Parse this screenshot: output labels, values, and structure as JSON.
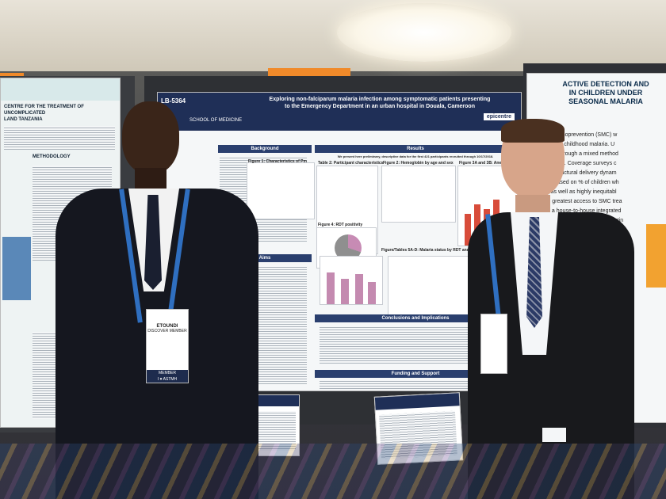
{
  "main_poster": {
    "id": "LB-5364",
    "title_line1": "Exploring non-falciparum malaria infection among symptomatic patients presenting",
    "title_line2": "to the Emergency Department in an urban hospital in Douala, Cameroon",
    "school": "SCHOOL OF MEDICINE",
    "logo_text": "epicentre",
    "sections": {
      "background": "Background",
      "results": "Results",
      "aims": "Aims",
      "conclusions": "Conclusions and Implications",
      "funding": "Funding and Support"
    },
    "results_intro": "We present here preliminary, descriptive data for the first 421 participants recruited through 10/17/2018.",
    "figure_labels": {
      "fig1": "Figure 1: Characteristics of Pm",
      "table2": "Table 2: Participant characteristics",
      "fig2": "Figure 2: Hemoglobin by age and sex",
      "fig3": "Figure 3A and 3B: Anemia",
      "fig4": "Figure 4: RDT positivity",
      "fig5": "Figure/Tables 5A-D: Malaria status by RDT and microscopy"
    }
  },
  "left_poster": {
    "title": "CENTRE FOR THE TREATMENT OF UNCOMPLICATED\nLAND TANZANIA",
    "methodology": "METHODOLOGY"
  },
  "right_poster": {
    "title": "ACTIVE DETECTION AND\nIN CHILDREN UNDER\nSEASONAL MALARIA",
    "body": "Malaria Chemoprevention (SMC) w\nool to reduce childhood malaria. U\nmodel was through a mixed method\ned in villages). Coverage surveys c\nhat these structural delivery dynam\noverage (based on % of children wh\ncycles), as well as highly inequitabl\nrved the greatest access to SMC trea\nhifted to a house-to-house integrated\ny model; pairing SMC with early testin\ncommunity health workers (CHWs)."
  },
  "left_badge": {
    "name": "ETOUNDI",
    "org": "DISCOVER MEMBER",
    "footer": "MEMBER\nI ♥ ASTMH"
  },
  "colors": {
    "poster_header": "#1f2f57",
    "section_bar": "#2a3f6e",
    "lanyard": "#2f6fc0",
    "sign_orange": "#f08a2a"
  }
}
